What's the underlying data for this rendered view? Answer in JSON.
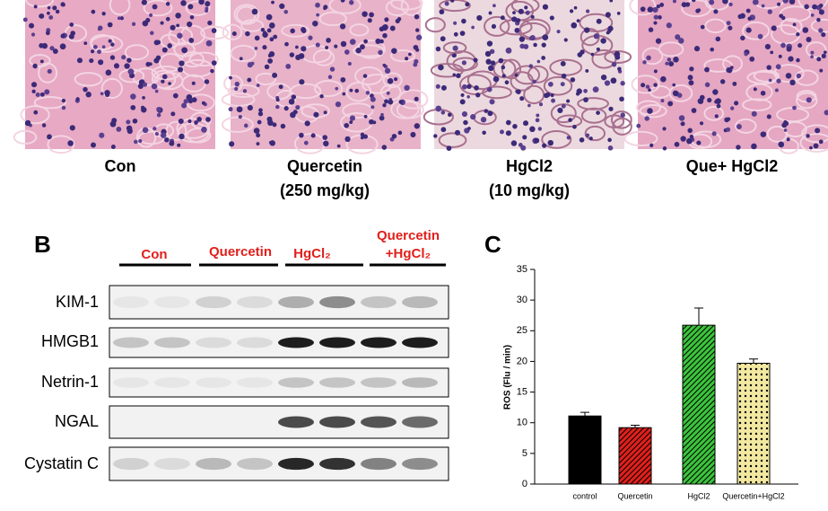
{
  "histology": {
    "labels": [
      [
        "Con"
      ],
      [
        "Quercetin",
        "(250 mg/kg)"
      ],
      [
        "HgCl2",
        "(10 mg/kg)"
      ],
      [
        "Que+ HgCl2"
      ]
    ]
  },
  "blot": {
    "panel_label": "B",
    "groups": [
      [
        "Con"
      ],
      [
        "Quercetin"
      ],
      [
        "HgCl₂"
      ],
      [
        "Quercetin",
        "+HgCl₂"
      ]
    ],
    "proteins": [
      "KIM-1",
      "HMGB1",
      "Netrin-1",
      "NGAL",
      "Cystatin C"
    ]
  },
  "chart_data": {
    "type": "bar",
    "panel_label": "C",
    "ylabel": "ROS (Flu / min)",
    "categories": [
      "control",
      "Quercetin",
      "HgCl2",
      "Quercetin+HgCl2"
    ],
    "values": [
      11.1,
      9.2,
      25.9,
      19.7
    ],
    "errors": [
      0.6,
      0.4,
      2.8,
      0.7
    ],
    "colors": [
      "#000000",
      "#e0201b",
      "#3cc43c",
      "#f2e8a0"
    ],
    "patterns": [
      "solid",
      "hatch",
      "hatch",
      "dots"
    ],
    "ylim": [
      0,
      35
    ],
    "yticks": [
      0,
      5,
      10,
      15,
      20,
      25,
      30,
      35
    ]
  }
}
